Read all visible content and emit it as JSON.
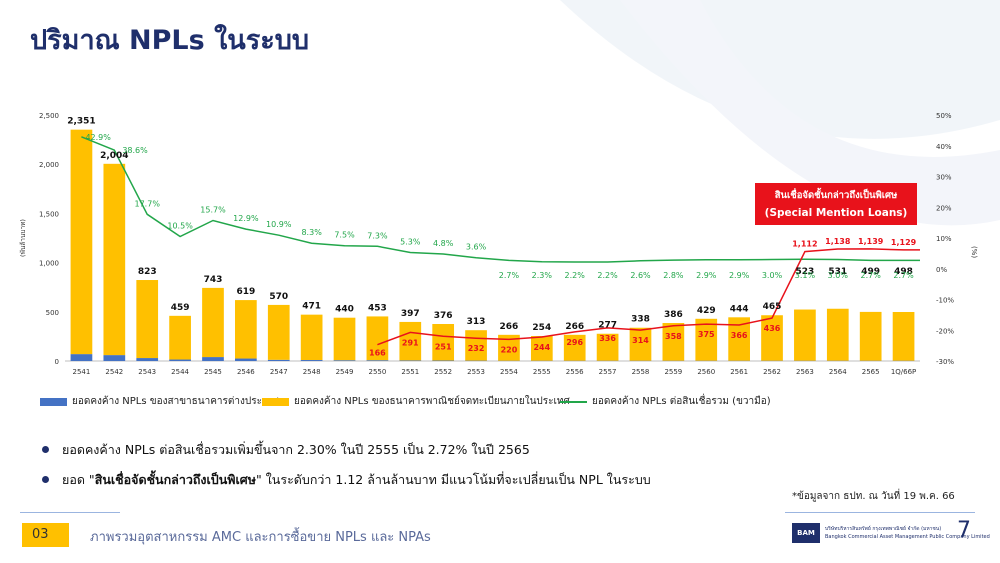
{
  "slide": {
    "title": "ปริมาณ NPLs ในระบบ",
    "source_note": "*ข้อมูลจาก ธปท. ณ วันที่ 19 พ.ค. 66",
    "footer_tag": "03",
    "footer_text": "ภาพรวมอุตสาหกรรม AMC และการซื้อขาย NPLs และ NPAs",
    "page_number": "7",
    "logo_mark": "BAM",
    "logo_line1": "บริษัทบริหารสินทรัพย์ กรุงเทพพาณิชย์ จำกัด (มหาชน)",
    "logo_line2": "Bangkok Commercial Asset Management Public Company Limited"
  },
  "legend": {
    "foreign": "ยอดคงค้าง NPLs ของสาขาธนาคารต่างประเทศ",
    "domestic": "ยอดคงค้าง NPLs ของธนาคารพาณิชย์จดทะเบียนภายในประเทศ",
    "ratio": "ยอดคงค้าง NPLs ต่อสินเชื่อรวม (ขวามือ)"
  },
  "bullets": [
    {
      "pre": "ยอดคงค้าง NPLs ต่อสินเชื่อรวมเพิ่มขึ้นจาก 2.30% ในปี 2555 เป็น 2.72% ในปี 2565",
      "bold": "",
      "post": ""
    },
    {
      "pre": "ยอด \"",
      "bold": "สินเชื่อจัดชั้นกล่าวถึงเป็นพิเศษ",
      "post": "\" ในระดับกว่า 1.12 ล้านล้านบาท มีแนวโน้มที่จะเปลี่ยนเป็น NPL ในระบบ"
    }
  ],
  "chart_data": {
    "type": "bar",
    "categories": [
      "2541",
      "2542",
      "2543",
      "2544",
      "2545",
      "2546",
      "2547",
      "2548",
      "2549",
      "2550",
      "2551",
      "2552",
      "2553",
      "2554",
      "2555",
      "2556",
      "2557",
      "2558",
      "2559",
      "2560",
      "2561",
      "2562",
      "2563",
      "2564",
      "2565",
      "1Q/66P"
    ],
    "series": [
      {
        "name": "ยอดคงค้าง NPLs ของสาขาธนาคารต่างประเทศ",
        "kind": "stacked-bar",
        "color": "#4472c4",
        "values": [
          70,
          60,
          30,
          15,
          40,
          25,
          12,
          10,
          8,
          8,
          6,
          5,
          4,
          3,
          3,
          3,
          3,
          3,
          3,
          3,
          3,
          3,
          3,
          3,
          3,
          3
        ]
      },
      {
        "name": "ยอดคงค้าง NPLs ของธนาคารพาณิชย์จดทะเบียนภายในประเทศ",
        "kind": "stacked-bar",
        "color": "#ffc000",
        "values": [
          2281,
          1944,
          793,
          444,
          703,
          594,
          558,
          461,
          432,
          445,
          391,
          371,
          309,
          263,
          251,
          263,
          274,
          335,
          383,
          426,
          441,
          462,
          520,
          528,
          496,
          495
        ]
      },
      {
        "name": "ยอดคงค้าง NPLs ต่อสินเชื่อรวม (ขวามือ)",
        "kind": "line",
        "axis": "right",
        "color": "#22a64a",
        "values": [
          42.9,
          38.6,
          17.7,
          10.5,
          15.7,
          12.9,
          10.9,
          8.3,
          7.5,
          7.3,
          5.3,
          4.8,
          3.6,
          2.7,
          2.3,
          2.2,
          2.2,
          2.6,
          2.8,
          2.9,
          2.9,
          3.0,
          3.1,
          3.0,
          2.7,
          2.7
        ]
      },
      {
        "name": "สินเชื่อจัดชั้นกล่าวถึงเป็นพิเศษ",
        "kind": "line",
        "axis": "left",
        "color": "#e8121b",
        "values": [
          null,
          null,
          null,
          null,
          null,
          null,
          null,
          null,
          null,
          166,
          291,
          251,
          232,
          220,
          244,
          296,
          336,
          314,
          358,
          375,
          366,
          436,
          1112,
          1138,
          1139,
          1129
        ]
      }
    ],
    "total_labels": [
      "2,351",
      "2,004",
      "823",
      "459",
      "743",
      "619",
      "570",
      "471",
      "440",
      "453",
      "397",
      "376",
      "313",
      "266",
      "254",
      "266",
      "277",
      "338",
      "386",
      "429",
      "444",
      "465",
      "523",
      "531",
      "499",
      "498"
    ],
    "ratio_labels": [
      "42.9%",
      "38.6%",
      "17.7%",
      "10.5%",
      "15.7%",
      "12.9%",
      "10.9%",
      "8.3%",
      "7.5%",
      "7.3%",
      "5.3%",
      "4.8%",
      "3.6%",
      "2.7%",
      "2.3%",
      "2.2%",
      "2.2%",
      "2.6%",
      "2.8%",
      "2.9%",
      "2.9%",
      "3.0%",
      "3.1%",
      "3.0%",
      "2.7%",
      "2.7%"
    ],
    "sml_labels": [
      "",
      "",
      "",
      "",
      "",
      "",
      "",
      "",
      "",
      "166",
      "291",
      "251",
      "232",
      "220",
      "244",
      "296",
      "336",
      "314",
      "358",
      "375",
      "366",
      "436",
      "1,112",
      "1,138",
      "1,139",
      "1,129"
    ],
    "ylim": [
      0,
      2500
    ],
    "y_ticks": [
      "0",
      "500",
      "1,000",
      "1,500",
      "2,000",
      "2,500"
    ],
    "y2lim": [
      -30,
      50
    ],
    "y2_ticks": [
      "-30%",
      "-20%",
      "-10%",
      "0%",
      "10%",
      "20%",
      "30%",
      "40%",
      "50%"
    ],
    "ylabel": "(พันล้านบาท)",
    "y2label": "(%)",
    "annotation": {
      "line1": "สินเชื่อจัดชั้นกล่าวถึงเป็นพิเศษ",
      "line2": "(Special Mention Loans)",
      "color": "#e8121b"
    },
    "grid": false,
    "legend_position": "bottom"
  }
}
